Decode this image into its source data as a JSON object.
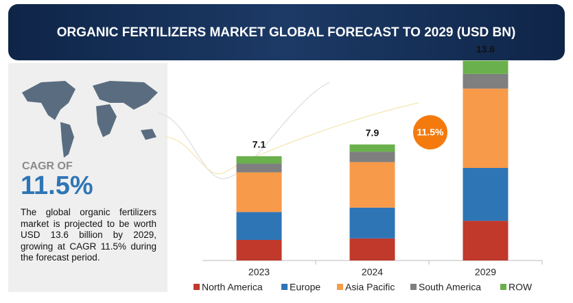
{
  "header": {
    "title": "ORGANIC FERTILIZERS MARKET GLOBAL FORECAST TO 2029 (USD BN)"
  },
  "sidebar": {
    "cagr_label": "CAGR OF",
    "cagr_value": "11.5%",
    "description": "The global organic fertilizers market is projected to be worth USD 13.6 billion by 2029, growing at CAGR 11.5% during the forecast period."
  },
  "chart_data": {
    "type": "stacked_bar",
    "categories": [
      "2023",
      "2024",
      "2029"
    ],
    "totals": [
      7.1,
      7.9,
      13.6
    ],
    "annotation": "11.5%",
    "ylim": [
      0,
      14
    ],
    "series": [
      {
        "name": "North America",
        "color": "#c0392b",
        "values": [
          1.4,
          1.5,
          2.7
        ]
      },
      {
        "name": "Europe",
        "color": "#2e75b6",
        "values": [
          1.9,
          2.1,
          3.6
        ]
      },
      {
        "name": "Asia Pacific",
        "color": "#f79a4a",
        "values": [
          2.7,
          3.1,
          5.4
        ]
      },
      {
        "name": "South America",
        "color": "#7f7f7f",
        "values": [
          0.6,
          0.7,
          1.0
        ]
      },
      {
        "name": "ROW",
        "color": "#6ab04c",
        "values": [
          0.5,
          0.5,
          0.9
        ]
      }
    ]
  }
}
